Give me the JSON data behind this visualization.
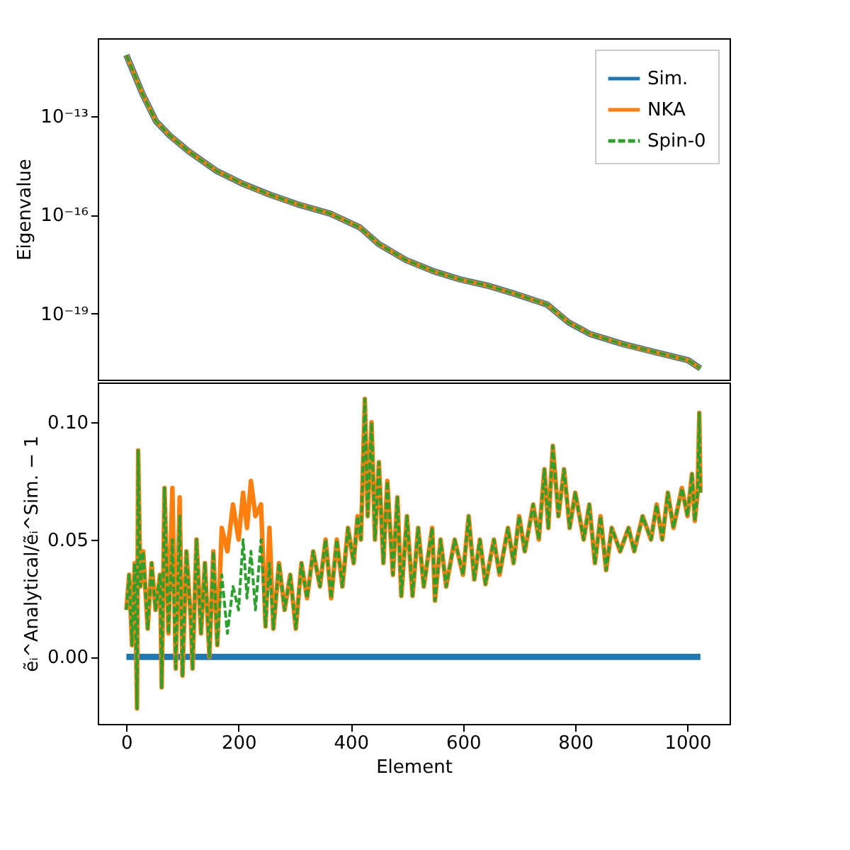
{
  "chart_data": [
    {
      "type": "line",
      "ylabel": "Eigenvalue",
      "log": "y",
      "grid": false,
      "legend": "top right",
      "tick_labels": "y",
      "xlim": [
        -51,
        1075
      ],
      "ylim": [
        1e-21,
        2.3e-11
      ],
      "yticks": [
        {
          "value": 1e-13,
          "label": "10⁻¹³"
        },
        {
          "value": 1e-16,
          "label": "10⁻¹⁶"
        },
        {
          "value": 1e-19,
          "label": "10⁻¹⁹"
        }
      ],
      "x": [
        0,
        29,
        53,
        77,
        111,
        160,
        208,
        256,
        305,
        363,
        416,
        450,
        498,
        546,
        595,
        643,
        691,
        750,
        788,
        827,
        885,
        943,
        1001,
        1023
      ],
      "series": [
        {
          "name": "Sim.",
          "color": "#1f77b4",
          "line_style": "solid",
          "values": [
            7.1e-12,
            4.6e-13,
            6.9e-14,
            2.6e-14,
            8.5e-15,
            2.2e-15,
            8.7e-16,
            4.1e-16,
            2.1e-16,
            1.1e-16,
            4.2e-17,
            1.3e-17,
            4.3e-18,
            2e-18,
            1.1e-18,
            7.2e-19,
            4.1e-19,
            1.9e-19,
            5.5e-20,
            2.4e-20,
            1.2e-20,
            6.8e-21,
            3.9e-21,
            2.2e-21
          ]
        },
        {
          "name": "NKA",
          "color": "#ff7f0e",
          "line_style": "solid",
          "values": [
            7.1e-12,
            4.6e-13,
            6.9e-14,
            2.6e-14,
            8.5e-15,
            2.2e-15,
            8.7e-16,
            4.1e-16,
            2.1e-16,
            1.1e-16,
            4.2e-17,
            1.3e-17,
            4.3e-18,
            2e-18,
            1.1e-18,
            7.2e-19,
            4.1e-19,
            1.9e-19,
            5.5e-20,
            2.4e-20,
            1.2e-20,
            6.8e-21,
            3.9e-21,
            2.2e-21
          ]
        },
        {
          "name": "Spin-0",
          "color": "#2ca02c",
          "line_style": "dashed",
          "values": [
            7.1e-12,
            4.6e-13,
            6.9e-14,
            2.6e-14,
            8.5e-15,
            2.2e-15,
            8.7e-16,
            4.1e-16,
            2.1e-16,
            1.1e-16,
            4.2e-17,
            1.3e-17,
            4.3e-18,
            2e-18,
            1.1e-18,
            7.2e-19,
            4.1e-19,
            1.9e-19,
            5.5e-20,
            2.4e-20,
            1.2e-20,
            6.8e-21,
            3.9e-21,
            2.2e-21
          ]
        }
      ]
    },
    {
      "type": "line",
      "xlabel": "Element",
      "ylabel": "ẽᵢ^Analytical/ẽᵢ^Sim. − 1",
      "grid": false,
      "legend": false,
      "xlim": [
        -51,
        1075
      ],
      "ylim": [
        -0.0286,
        0.117
      ],
      "xticks": [
        0,
        200,
        400,
        600,
        800,
        1000
      ],
      "yticks": [
        {
          "value": 0,
          "label": "0.00"
        },
        {
          "value": 0.05,
          "label": "0.05"
        },
        {
          "value": 0.1,
          "label": "0.10"
        }
      ],
      "x": [
        0,
        5,
        10,
        15,
        19,
        21,
        25,
        30,
        38,
        45,
        52,
        60,
        63,
        68,
        75,
        82,
        88,
        95,
        100,
        107,
        115,
        118,
        125,
        133,
        140,
        148,
        155,
        162,
        170,
        180,
        190,
        200,
        208,
        215,
        222,
        230,
        240,
        248,
        255,
        262,
        272,
        282,
        292,
        302,
        312,
        322,
        333,
        345,
        355,
        365,
        375,
        385,
        395,
        405,
        412,
        418,
        425,
        430,
        437,
        443,
        450,
        458,
        465,
        475,
        483,
        490,
        500,
        510,
        520,
        530,
        545,
        550,
        560,
        570,
        585,
        600,
        610,
        620,
        630,
        640,
        655,
        665,
        680,
        690,
        700,
        710,
        725,
        735,
        745,
        752,
        760,
        770,
        780,
        790,
        800,
        815,
        825,
        835,
        845,
        855,
        865,
        880,
        895,
        905,
        920,
        935,
        945,
        955,
        965,
        975,
        990,
        1000,
        1008,
        1013,
        1018,
        1021,
        1023
      ],
      "series": [
        {
          "color": "#1f77b4",
          "line_style": "solid",
          "x": [
            0,
            1023
          ],
          "values": [
            0,
            0
          ]
        },
        {
          "color": "#ff7f0e",
          "line_style": "solid",
          "values": [
            0.02,
            0.035,
            0.005,
            0.04,
            -0.022,
            0.088,
            0.03,
            0.045,
            0.012,
            0.04,
            0.02,
            0.035,
            -0.013,
            0.072,
            0.01,
            0.072,
            -0.005,
            0.068,
            -0.008,
            0.045,
            0.015,
            -0.005,
            0.05,
            0.01,
            0.04,
            0.0,
            0.045,
            0.005,
            0.055,
            0.045,
            0.065,
            0.05,
            0.07,
            0.055,
            0.075,
            0.06,
            0.065,
            0.013,
            0.055,
            0.012,
            0.04,
            0.02,
            0.035,
            0.012,
            0.04,
            0.025,
            0.045,
            0.03,
            0.05,
            0.025,
            0.05,
            0.03,
            0.055,
            0.04,
            0.06,
            0.05,
            0.11,
            0.06,
            0.1,
            0.05,
            0.083,
            0.04,
            0.075,
            0.035,
            0.068,
            0.026,
            0.06,
            0.026,
            0.055,
            0.03,
            0.055,
            0.024,
            0.05,
            0.03,
            0.05,
            0.035,
            0.06,
            0.033,
            0.05,
            0.031,
            0.05,
            0.035,
            0.055,
            0.04,
            0.06,
            0.045,
            0.065,
            0.05,
            0.08,
            0.055,
            0.09,
            0.06,
            0.08,
            0.055,
            0.07,
            0.05,
            0.065,
            0.04,
            0.06,
            0.037,
            0.055,
            0.045,
            0.055,
            0.045,
            0.06,
            0.05,
            0.065,
            0.05,
            0.07,
            0.055,
            0.072,
            0.06,
            0.078,
            0.058,
            0.07,
            0.104,
            0.07
          ]
        },
        {
          "color": "#2ca02c",
          "line_style": "dashed",
          "values": [
            0.02,
            0.035,
            0.005,
            0.04,
            -0.022,
            0.088,
            0.03,
            0.045,
            0.012,
            0.04,
            0.02,
            0.035,
            -0.013,
            0.072,
            0.01,
            0.05,
            -0.005,
            0.06,
            -0.008,
            0.045,
            0.015,
            -0.005,
            0.05,
            0.01,
            0.04,
            0.0,
            0.045,
            0.005,
            0.035,
            0.01,
            0.03,
            0.02,
            0.05,
            0.025,
            0.045,
            0.02,
            0.05,
            0.013,
            0.04,
            0.012,
            0.04,
            0.02,
            0.035,
            0.012,
            0.04,
            0.025,
            0.045,
            0.03,
            0.05,
            0.025,
            0.05,
            0.03,
            0.055,
            0.04,
            0.06,
            0.05,
            0.11,
            0.06,
            0.1,
            0.05,
            0.083,
            0.04,
            0.075,
            0.035,
            0.068,
            0.026,
            0.06,
            0.026,
            0.055,
            0.03,
            0.055,
            0.024,
            0.05,
            0.03,
            0.05,
            0.035,
            0.06,
            0.033,
            0.05,
            0.031,
            0.05,
            0.035,
            0.055,
            0.04,
            0.06,
            0.045,
            0.065,
            0.05,
            0.08,
            0.055,
            0.09,
            0.06,
            0.08,
            0.055,
            0.07,
            0.05,
            0.065,
            0.04,
            0.06,
            0.037,
            0.055,
            0.045,
            0.055,
            0.045,
            0.06,
            0.05,
            0.065,
            0.05,
            0.07,
            0.055,
            0.072,
            0.06,
            0.078,
            0.058,
            0.07,
            0.104,
            0.07
          ]
        }
      ]
    }
  ]
}
